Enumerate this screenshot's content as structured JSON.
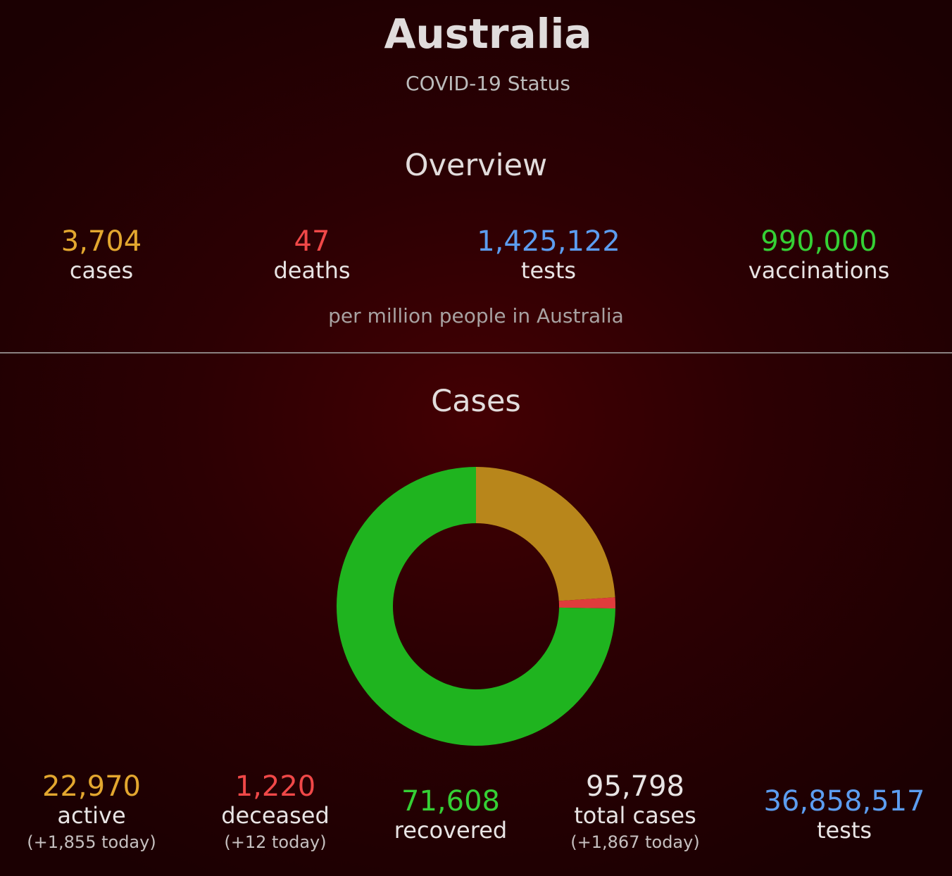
{
  "header": {
    "title": "Australia",
    "subtitle": "COVID-19 Status"
  },
  "overview": {
    "title": "Overview",
    "note": "per million people in Australia",
    "stats": [
      {
        "value": "3,704",
        "label": "cases",
        "color": "#e3a72f"
      },
      {
        "value": "47",
        "label": "deaths",
        "color": "#f04848"
      },
      {
        "value": "1,425,122",
        "label": "tests",
        "color": "#5c9df0"
      },
      {
        "value": "990,000",
        "label": "vaccinations",
        "color": "#35d035"
      }
    ]
  },
  "cases": {
    "title": "Cases",
    "stats": [
      {
        "value": "22,970",
        "label": "active",
        "today": "(+1,855 today)",
        "color": "#e3a72f"
      },
      {
        "value": "1,220",
        "label": "deceased",
        "today": "(+12 today)",
        "color": "#f04848"
      },
      {
        "value": "71,608",
        "label": "recovered",
        "today": "",
        "color": "#35d035"
      },
      {
        "value": "95,798",
        "label": "total cases",
        "today": "(+1,867 today)",
        "color": "#e8e4e4"
      },
      {
        "value": "36,858,517",
        "label": "tests",
        "today": "",
        "color": "#5c9df0"
      }
    ]
  },
  "chart_data": {
    "type": "pie",
    "style": "donut",
    "categories": [
      "active",
      "deceased",
      "recovered"
    ],
    "values": [
      22970,
      1220,
      71608
    ],
    "colors": [
      "#b8861b",
      "#e03c3c",
      "#1fb41f"
    ],
    "title": "Cases"
  }
}
